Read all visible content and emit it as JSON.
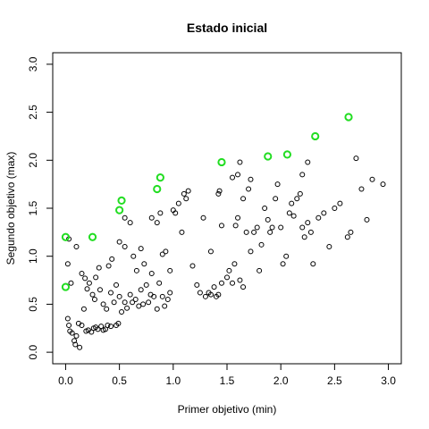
{
  "chart_data": {
    "type": "scatter",
    "title": "Estado inicial",
    "xlabel": "Primer objetivo (min)",
    "ylabel": "Segundo objetivo (max)",
    "xlim": [
      -0.12,
      3.12
    ],
    "ylim": [
      -0.12,
      3.12
    ],
    "xticks": [
      "0.0",
      "0.5",
      "1.0",
      "1.5",
      "2.0",
      "2.5",
      "3.0"
    ],
    "yticks": [
      "0.0",
      "0.5",
      "1.0",
      "1.5",
      "2.0",
      "2.5",
      "3.0"
    ],
    "grid": false,
    "series": [
      {
        "color": "#000000",
        "marker": "open-circle",
        "points": [
          [
            0.02,
            0.35
          ],
          [
            0.03,
            0.28
          ],
          [
            0.04,
            0.22
          ],
          [
            0.06,
            0.2
          ],
          [
            0.08,
            0.12
          ],
          [
            0.09,
            0.08
          ],
          [
            0.1,
            0.17
          ],
          [
            0.12,
            0.3
          ],
          [
            0.13,
            0.05
          ],
          [
            0.15,
            0.28
          ],
          [
            0.17,
            0.45
          ],
          [
            0.19,
            0.22
          ],
          [
            0.21,
            0.23
          ],
          [
            0.24,
            0.21
          ],
          [
            0.26,
            0.25
          ],
          [
            0.28,
            0.26
          ],
          [
            0.3,
            0.24
          ],
          [
            0.33,
            0.27
          ],
          [
            0.35,
            0.23
          ],
          [
            0.37,
            0.24
          ],
          [
            0.39,
            0.28
          ],
          [
            0.42,
            0.27
          ],
          [
            0.47,
            0.28
          ],
          [
            0.49,
            0.3
          ],
          [
            0.02,
            0.92
          ],
          [
            0.03,
            1.18
          ],
          [
            0.05,
            0.72
          ],
          [
            0.1,
            1.1
          ],
          [
            0.15,
            0.82
          ],
          [
            0.18,
            0.77
          ],
          [
            0.2,
            0.66
          ],
          [
            0.22,
            0.72
          ],
          [
            0.25,
            0.6
          ],
          [
            0.27,
            0.55
          ],
          [
            0.28,
            0.78
          ],
          [
            0.32,
            0.65
          ],
          [
            0.31,
            0.88
          ],
          [
            0.35,
            0.5
          ],
          [
            0.38,
            0.45
          ],
          [
            0.42,
            0.62
          ],
          [
            0.4,
            0.9
          ],
          [
            0.45,
            0.52
          ],
          [
            0.47,
            0.7
          ],
          [
            0.5,
            0.58
          ],
          [
            0.43,
            0.97
          ],
          [
            0.52,
            0.42
          ],
          [
            0.55,
            0.52
          ],
          [
            0.57,
            0.46
          ],
          [
            0.6,
            0.6
          ],
          [
            0.62,
            0.52
          ],
          [
            0.65,
            0.55
          ],
          [
            0.68,
            0.48
          ],
          [
            0.7,
            0.65
          ],
          [
            0.72,
            0.5
          ],
          [
            0.75,
            0.7
          ],
          [
            0.77,
            0.52
          ],
          [
            0.79,
            0.6
          ],
          [
            0.82,
            0.58
          ],
          [
            0.85,
            0.45
          ],
          [
            0.87,
            0.72
          ],
          [
            0.9,
            0.58
          ],
          [
            0.92,
            0.48
          ],
          [
            0.95,
            0.55
          ],
          [
            0.97,
            0.62
          ],
          [
            0.5,
            1.15
          ],
          [
            0.55,
            1.1
          ],
          [
            0.55,
            1.4
          ],
          [
            0.6,
            1.35
          ],
          [
            0.63,
            1.0
          ],
          [
            0.66,
            0.85
          ],
          [
            0.7,
            1.08
          ],
          [
            0.73,
            0.92
          ],
          [
            0.8,
            0.82
          ],
          [
            0.8,
            1.4
          ],
          [
            0.85,
            1.35
          ],
          [
            0.88,
            1.45
          ],
          [
            0.9,
            1.02
          ],
          [
            0.93,
            1.05
          ],
          [
            0.97,
            0.85
          ],
          [
            1.0,
            1.48
          ],
          [
            1.02,
            1.45
          ],
          [
            1.05,
            1.55
          ],
          [
            1.08,
            1.25
          ],
          [
            1.1,
            1.65
          ],
          [
            1.12,
            1.6
          ],
          [
            1.14,
            1.68
          ],
          [
            1.18,
            0.9
          ],
          [
            1.22,
            0.7
          ],
          [
            1.25,
            0.62
          ],
          [
            1.28,
            1.4
          ],
          [
            1.3,
            0.58
          ],
          [
            1.33,
            0.62
          ],
          [
            1.35,
            0.6
          ],
          [
            1.38,
            0.68
          ],
          [
            1.4,
            0.58
          ],
          [
            1.42,
            0.6
          ],
          [
            1.45,
            0.72
          ],
          [
            1.35,
            1.05
          ],
          [
            1.42,
            1.65
          ],
          [
            1.43,
            1.68
          ],
          [
            1.45,
            1.32
          ],
          [
            1.5,
            0.78
          ],
          [
            1.52,
            0.85
          ],
          [
            1.55,
            0.72
          ],
          [
            1.57,
            0.92
          ],
          [
            1.58,
            1.32
          ],
          [
            1.6,
            1.4
          ],
          [
            1.62,
            0.75
          ],
          [
            1.65,
            0.68
          ],
          [
            1.6,
            1.85
          ],
          [
            1.65,
            1.6
          ],
          [
            1.7,
            1.7
          ],
          [
            1.68,
            1.25
          ],
          [
            1.72,
            1.05
          ],
          [
            1.75,
            1.25
          ],
          [
            1.78,
            1.3
          ],
          [
            1.8,
            0.85
          ],
          [
            1.82,
            1.12
          ],
          [
            1.85,
            1.5
          ],
          [
            1.88,
            1.38
          ],
          [
            1.9,
            1.25
          ],
          [
            1.92,
            1.3
          ],
          [
            1.95,
            1.6
          ],
          [
            1.97,
            1.75
          ],
          [
            2.0,
            1.3
          ],
          [
            2.02,
            0.92
          ],
          [
            2.05,
            1.0
          ],
          [
            2.08,
            1.45
          ],
          [
            2.1,
            1.55
          ],
          [
            2.12,
            1.42
          ],
          [
            2.15,
            1.6
          ],
          [
            2.18,
            1.65
          ],
          [
            2.2,
            1.3
          ],
          [
            2.22,
            1.2
          ],
          [
            2.25,
            1.35
          ],
          [
            2.28,
            1.25
          ],
          [
            2.3,
            0.92
          ],
          [
            2.35,
            1.4
          ],
          [
            2.4,
            1.45
          ],
          [
            2.45,
            1.1
          ],
          [
            2.5,
            1.5
          ],
          [
            2.55,
            1.55
          ],
          [
            2.62,
            1.2
          ],
          [
            2.65,
            1.25
          ],
          [
            2.7,
            2.02
          ],
          [
            2.75,
            1.7
          ],
          [
            2.8,
            1.38
          ],
          [
            2.85,
            1.8
          ],
          [
            2.95,
            1.75
          ],
          [
            2.2,
            1.85
          ],
          [
            2.25,
            1.98
          ],
          [
            1.62,
            1.98
          ],
          [
            1.72,
            1.8
          ],
          [
            1.55,
            1.82
          ]
        ]
      },
      {
        "color": "#22dd22",
        "marker": "open-circle-bold",
        "points": [
          [
            0.0,
            1.2
          ],
          [
            0.0,
            0.68
          ],
          [
            0.25,
            1.2
          ],
          [
            0.5,
            1.48
          ],
          [
            0.52,
            1.58
          ],
          [
            0.85,
            1.7
          ],
          [
            0.88,
            1.82
          ],
          [
            1.45,
            1.98
          ],
          [
            1.88,
            2.04
          ],
          [
            2.06,
            2.06
          ],
          [
            2.32,
            2.25
          ],
          [
            2.63,
            2.45
          ]
        ]
      }
    ]
  }
}
